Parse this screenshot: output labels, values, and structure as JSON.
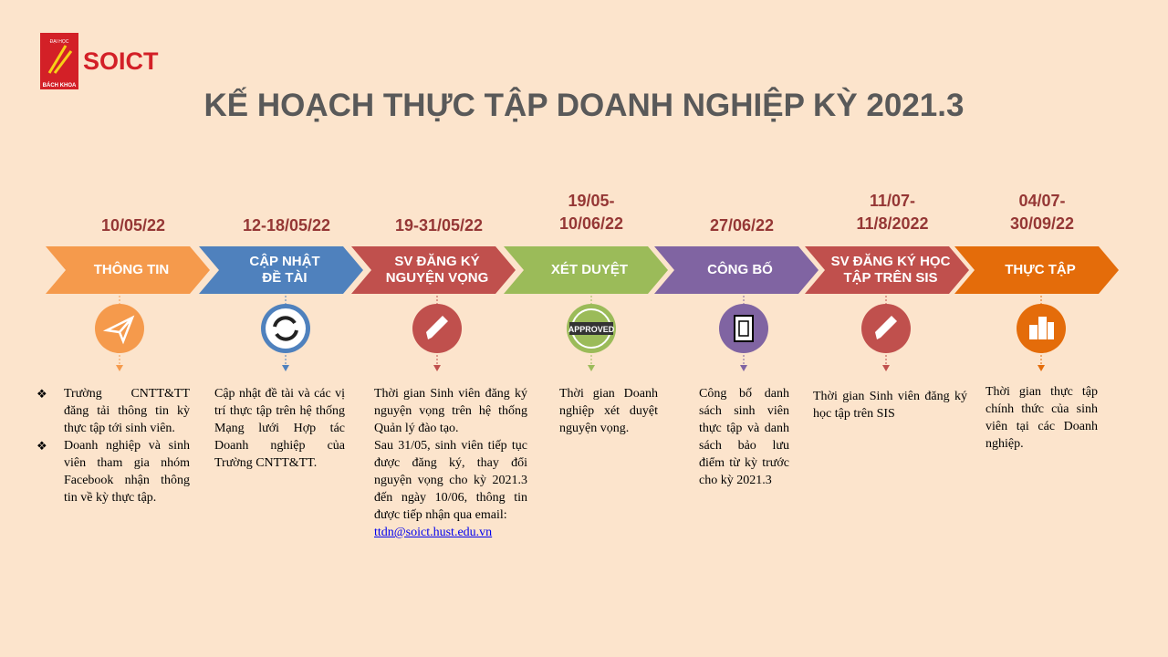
{
  "logo": {
    "brand": "SOICT",
    "top": "ĐẠI HỌC",
    "bottom": "BÁCH KHOA"
  },
  "title": "KẾ HOẠCH THỰC TẬP DOANH NGHIỆP KỲ 2021.3",
  "steps": [
    {
      "date": [
        "10/05/22"
      ],
      "label": [
        "THÔNG TIN"
      ],
      "color": "#f59a4c",
      "bullets": true,
      "paragraphs": [
        "Trường CNTT&TT đăng tải thông tin kỳ thực tập tới sinh viên.",
        "Doanh nghiệp và sinh viên tham gia nhóm Facebook nhận thông tin về kỳ thực tập."
      ]
    },
    {
      "date": [
        "12-18/05/22"
      ],
      "label": [
        "CẬP NHẬT",
        "ĐỀ TÀI"
      ],
      "color": "#4f81bd",
      "bullets": false,
      "paragraphs": [
        "Cập nhật đề tài và các vị trí thực tập trên hệ thống Mạng lưới Hợp tác Doanh nghiệp của Trường CNTT&TT."
      ]
    },
    {
      "date": [
        "19-31/05/22"
      ],
      "label": [
        "SV ĐĂNG KÝ",
        "NGUYỆN VỌNG"
      ],
      "color": "#c0504d",
      "bullets": false,
      "paragraphs": [
        "Thời gian Sinh viên đăng ký nguyện vọng trên hệ thống Quản lý đào tạo.",
        "Sau 31/05, sinh viên tiếp tục được đăng ký, thay đổi nguyện vọng cho kỳ 2021.3 đến ngày 10/06, thông tin được tiếp nhận qua email:"
      ],
      "email": "ttdn@soict.hust.edu.vn"
    },
    {
      "date": [
        "19/05-",
        "10/06/22"
      ],
      "label": [
        "XÉT DUYỆT"
      ],
      "color": "#9bbb59",
      "bullets": false,
      "paragraphs": [
        "Thời gian Doanh nghiệp xét duyệt nguyện vọng."
      ],
      "icon_text": "APPROVED"
    },
    {
      "date": [
        "27/06/22"
      ],
      "label": [
        "CÔNG BỐ"
      ],
      "color": "#8064a2",
      "bullets": false,
      "paragraphs": [
        "Công bố danh sách sinh viên thực tập và danh sách bảo lưu điểm từ kỳ trước cho kỳ 2021.3"
      ]
    },
    {
      "date": [
        "11/07-",
        "11/8/2022"
      ],
      "label": [
        "SV ĐĂNG KÝ HỌC",
        "TẬP TRÊN SIS"
      ],
      "color": "#c0504d",
      "bullets": false,
      "paragraphs": [
        "Thời gian Sinh viên đăng ký học tập trên SIS"
      ]
    },
    {
      "date": [
        "04/07-",
        "30/09/22"
      ],
      "label": [
        "THỰC TẬP"
      ],
      "color": "#e46c0a",
      "bullets": false,
      "paragraphs": [
        "Thời gian thực tập chính thức của sinh viên tại các Doanh nghiệp."
      ]
    }
  ]
}
